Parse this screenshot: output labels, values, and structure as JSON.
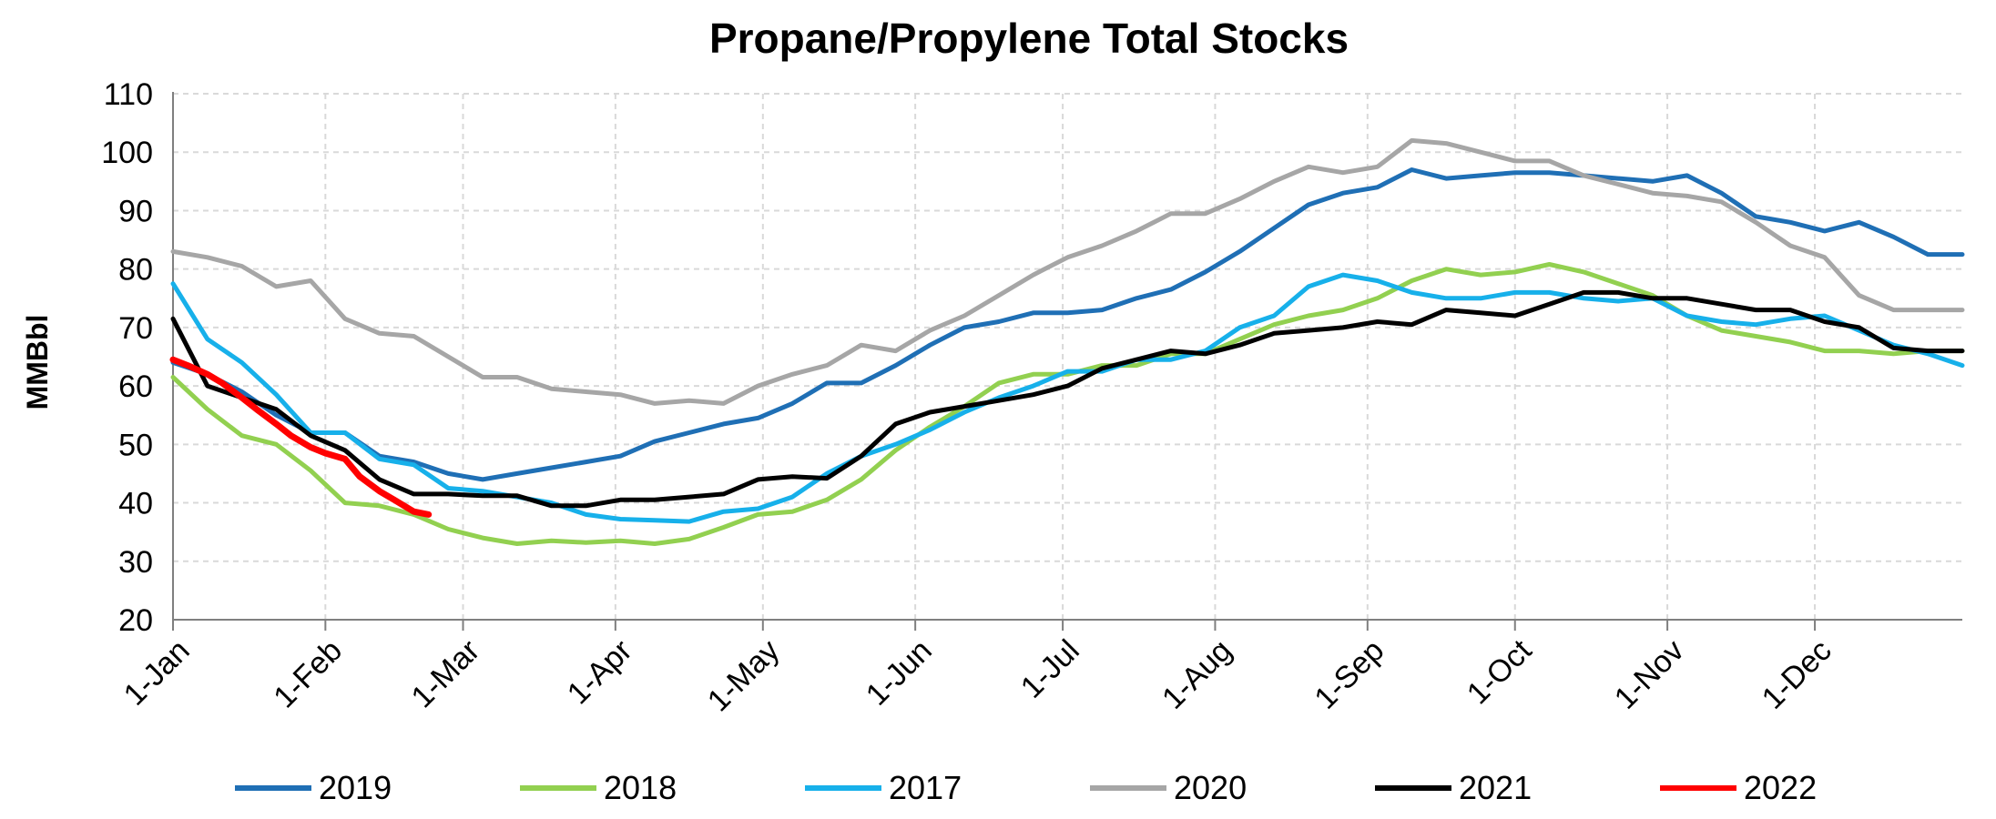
{
  "chart_data": {
    "type": "line",
    "title": "Propane/Propylene Total Stocks",
    "ylabel": "MMBbl",
    "xlabel": "",
    "ylim": [
      20,
      110
    ],
    "yticks": [
      20,
      30,
      40,
      50,
      60,
      70,
      80,
      90,
      100,
      110
    ],
    "xlim_day_of_year": [
      1,
      365
    ],
    "xticks": [
      {
        "label": "1-Jan",
        "day": 1
      },
      {
        "label": "1-Feb",
        "day": 32
      },
      {
        "label": "1-Mar",
        "day": 60
      },
      {
        "label": "1-Apr",
        "day": 91
      },
      {
        "label": "1-May",
        "day": 121
      },
      {
        "label": "1-Jun",
        "day": 152
      },
      {
        "label": "1-Jul",
        "day": 182
      },
      {
        "label": "1-Aug",
        "day": 213
      },
      {
        "label": "1-Sep",
        "day": 244
      },
      {
        "label": "1-Oct",
        "day": 274
      },
      {
        "label": "1-Nov",
        "day": 305
      },
      {
        "label": "1-Dec",
        "day": 335
      }
    ],
    "grid": true,
    "legend_position": "bottom",
    "series": [
      {
        "name": "2019",
        "color": "#1f6fb5",
        "x": [
          1,
          8,
          15,
          22,
          29,
          36,
          43,
          50,
          57,
          64,
          71,
          78,
          85,
          92,
          99,
          106,
          113,
          120,
          127,
          134,
          141,
          148,
          155,
          162,
          169,
          176,
          183,
          190,
          197,
          204,
          211,
          218,
          225,
          232,
          239,
          246,
          253,
          260,
          267,
          274,
          281,
          288,
          295,
          302,
          309,
          316,
          323,
          330,
          337,
          344,
          351,
          358,
          365
        ],
        "y": [
          64,
          62,
          59,
          55,
          52,
          52,
          48,
          47,
          45,
          44,
          45,
          46,
          47,
          48,
          50.5,
          52,
          53.5,
          54.5,
          57,
          60.5,
          60.5,
          63.5,
          67,
          70,
          71,
          72.5,
          72.5,
          73,
          75,
          76.5,
          79.5,
          83,
          87,
          91,
          93,
          94,
          97,
          95.5,
          96,
          96.5,
          96.5,
          96,
          95.5,
          95,
          96,
          93,
          89,
          88,
          86.5,
          88,
          85.5,
          82.5,
          82.5
        ]
      },
      {
        "name": "2018",
        "color": "#92d050",
        "x": [
          1,
          8,
          15,
          22,
          29,
          36,
          43,
          50,
          57,
          64,
          71,
          78,
          85,
          92,
          99,
          106,
          113,
          120,
          127,
          134,
          141,
          148,
          155,
          162,
          169,
          176,
          183,
          190,
          197,
          204,
          211,
          218,
          225,
          232,
          239,
          246,
          253,
          260,
          267,
          274,
          281,
          288,
          295,
          302,
          309,
          316,
          323,
          330,
          337,
          344,
          351,
          358,
          365
        ],
        "y": [
          61.5,
          56,
          51.5,
          50,
          45.5,
          40,
          39.5,
          38,
          35.5,
          34,
          33,
          33.5,
          33.2,
          33.5,
          33,
          33.8,
          35.8,
          38,
          38.5,
          40.5,
          44,
          49,
          53,
          56.5,
          60.5,
          62,
          62,
          63.5,
          63.5,
          65.5,
          65.5,
          68,
          70.5,
          72,
          73,
          75,
          78,
          80,
          79,
          79.5,
          80.8,
          79.5,
          77.5,
          75.5,
          72,
          69.5,
          68.5,
          67.5,
          66,
          66,
          65.5,
          66,
          66
        ]
      },
      {
        "name": "2017",
        "color": "#17b0ea",
        "x": [
          1,
          8,
          15,
          22,
          29,
          36,
          43,
          50,
          57,
          64,
          71,
          78,
          85,
          92,
          99,
          106,
          113,
          120,
          127,
          134,
          141,
          148,
          155,
          162,
          169,
          176,
          183,
          190,
          197,
          204,
          211,
          218,
          225,
          232,
          239,
          246,
          253,
          260,
          267,
          274,
          281,
          288,
          295,
          302,
          309,
          316,
          323,
          330,
          337,
          344,
          351,
          358,
          365
        ],
        "y": [
          77.5,
          68,
          64,
          58.5,
          52,
          52,
          47.5,
          46.5,
          42.5,
          42,
          41,
          40,
          38,
          37.2,
          37,
          36.8,
          38.5,
          39,
          41,
          45,
          48,
          50,
          52.5,
          55.5,
          58,
          60,
          62.5,
          62.5,
          64.5,
          64.5,
          66,
          70,
          72,
          77,
          79,
          78,
          76,
          75,
          75,
          76,
          76,
          75,
          74.5,
          75,
          72,
          71,
          70.5,
          71.5,
          72,
          69.5,
          67,
          65.5,
          63.5
        ]
      },
      {
        "name": "2020",
        "color": "#a6a6a6",
        "x": [
          1,
          8,
          15,
          22,
          29,
          36,
          43,
          50,
          57,
          64,
          71,
          78,
          85,
          92,
          99,
          106,
          113,
          120,
          127,
          134,
          141,
          148,
          155,
          162,
          169,
          176,
          183,
          190,
          197,
          204,
          211,
          218,
          225,
          232,
          239,
          246,
          253,
          260,
          267,
          274,
          281,
          288,
          295,
          302,
          309,
          316,
          323,
          330,
          337,
          344,
          351,
          358,
          365
        ],
        "y": [
          83,
          82,
          80.5,
          77,
          78,
          71.5,
          69,
          68.5,
          65,
          61.5,
          61.5,
          59.5,
          59,
          58.5,
          57,
          57.5,
          57,
          60,
          62,
          63.5,
          67,
          66,
          69.5,
          72,
          75.5,
          79,
          82,
          84,
          86.5,
          89.5,
          89.5,
          92,
          95,
          97.5,
          96.5,
          97.5,
          102,
          101.5,
          100,
          98.5,
          98.5,
          96,
          94.5,
          93,
          92.5,
          91.5,
          88,
          84,
          82,
          75.5,
          73,
          73,
          73
        ]
      },
      {
        "name": "2021",
        "color": "#000000",
        "x": [
          1,
          8,
          15,
          22,
          29,
          36,
          43,
          50,
          57,
          64,
          71,
          78,
          85,
          92,
          99,
          106,
          113,
          120,
          127,
          134,
          141,
          148,
          155,
          162,
          169,
          176,
          183,
          190,
          197,
          204,
          211,
          218,
          225,
          232,
          239,
          246,
          253,
          260,
          267,
          274,
          281,
          288,
          295,
          302,
          309,
          316,
          323,
          330,
          337,
          344,
          351,
          358,
          365
        ],
        "y": [
          71.5,
          60,
          58,
          56,
          51.5,
          49,
          44,
          41.5,
          41.5,
          41.2,
          41.2,
          39.5,
          39.5,
          40.5,
          40.5,
          41,
          41.5,
          44,
          44.5,
          44.2,
          48,
          53.5,
          55.5,
          56.5,
          57.5,
          58.5,
          60,
          63,
          64.5,
          66,
          65.5,
          67,
          69,
          69.5,
          70,
          71,
          70.5,
          73,
          72.5,
          72,
          74,
          76,
          76,
          75,
          75,
          74,
          73,
          73,
          71,
          70,
          66.5,
          66,
          66
        ]
      },
      {
        "name": "2022",
        "color": "#ff0000",
        "x": [
          1,
          4,
          8,
          11,
          15,
          18,
          22,
          25,
          29,
          32,
          36,
          39,
          43,
          46,
          50,
          53
        ],
        "y": [
          64.5,
          63.5,
          62,
          60.5,
          58,
          56,
          53.5,
          51.5,
          49.5,
          48.5,
          47.5,
          44.5,
          42,
          40.5,
          38.5,
          38
        ]
      }
    ]
  }
}
